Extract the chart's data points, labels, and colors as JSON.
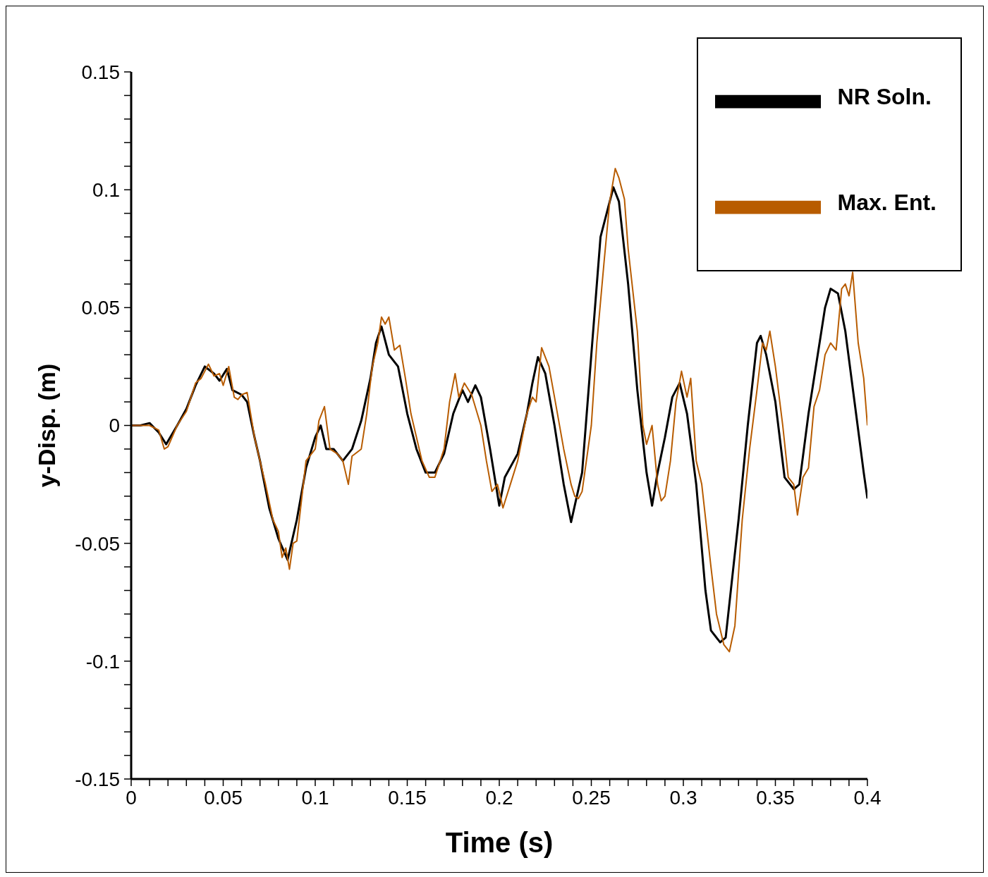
{
  "chart_data": {
    "type": "line",
    "xlabel": "Time (s)",
    "ylabel": "y-Disp. (m)",
    "legend": "top right",
    "xlim": [
      0,
      0.4
    ],
    "ylim": [
      -0.15,
      0.15
    ],
    "xticks": [
      0,
      {
        "value": 0.01,
        "label": null
      },
      {
        "value": 0.02,
        "label": null
      },
      {
        "value": 0.03,
        "label": null
      },
      {
        "value": 0.04,
        "label": null
      },
      0.05,
      {
        "value": 0.06,
        "label": null
      },
      {
        "value": 0.07,
        "label": null
      },
      {
        "value": 0.08,
        "label": null
      },
      {
        "value": 0.09,
        "label": null
      },
      0.1,
      {
        "value": 0.11,
        "label": null
      },
      {
        "value": 0.12,
        "label": null
      },
      {
        "value": 0.13,
        "label": null
      },
      {
        "value": 0.14,
        "label": null
      },
      0.15,
      {
        "value": 0.16,
        "label": null
      },
      {
        "value": 0.17,
        "label": null
      },
      {
        "value": 0.18,
        "label": null
      },
      {
        "value": 0.19,
        "label": null
      },
      0.2,
      {
        "value": 0.21,
        "label": null
      },
      {
        "value": 0.22,
        "label": null
      },
      {
        "value": 0.23,
        "label": null
      },
      {
        "value": 0.24,
        "label": null
      },
      0.25,
      {
        "value": 0.26,
        "label": null
      },
      {
        "value": 0.27,
        "label": null
      },
      {
        "value": 0.28,
        "label": null
      },
      {
        "value": 0.29,
        "label": null
      },
      0.3,
      {
        "value": 0.31,
        "label": null
      },
      {
        "value": 0.32,
        "label": null
      },
      {
        "value": 0.33,
        "label": null
      },
      {
        "value": 0.34,
        "label": null
      },
      0.35,
      {
        "value": 0.36,
        "label": null
      },
      {
        "value": 0.37,
        "label": null
      },
      {
        "value": 0.38,
        "label": null
      },
      {
        "value": 0.39,
        "label": null
      },
      0.4
    ],
    "yticks": [
      -0.15,
      {
        "value": -0.14,
        "label": null
      },
      {
        "value": -0.13,
        "label": null
      },
      {
        "value": -0.12,
        "label": null
      },
      {
        "value": -0.11,
        "label": null
      },
      -0.1,
      {
        "value": -0.09,
        "label": null
      },
      {
        "value": -0.08,
        "label": null
      },
      {
        "value": -0.07,
        "label": null
      },
      {
        "value": -0.06,
        "label": null
      },
      -0.05,
      {
        "value": -0.04,
        "label": null
      },
      {
        "value": -0.03,
        "label": null
      },
      {
        "value": -0.02,
        "label": null
      },
      {
        "value": -0.01,
        "label": null
      },
      0,
      {
        "value": 0.01,
        "label": null
      },
      {
        "value": 0.02,
        "label": null
      },
      {
        "value": 0.03,
        "label": null
      },
      {
        "value": 0.04,
        "label": null
      },
      0.05,
      {
        "value": 0.06,
        "label": null
      },
      {
        "value": 0.07,
        "label": null
      },
      {
        "value": 0.08,
        "label": null
      },
      {
        "value": 0.09,
        "label": null
      },
      0.1,
      {
        "value": 0.11,
        "label": null
      },
      {
        "value": 0.12,
        "label": null
      },
      {
        "value": 0.13,
        "label": null
      },
      {
        "value": 0.14,
        "label": null
      },
      0.15
    ],
    "series": [
      {
        "name": "NR Soln.",
        "color": "#000000",
        "x": [
          0,
          0.005,
          0.01,
          0.015,
          0.019,
          0.025,
          0.03,
          0.035,
          0.04,
          0.045,
          0.048,
          0.052,
          0.055,
          0.06,
          0.063,
          0.067,
          0.07,
          0.075,
          0.08,
          0.085,
          0.09,
          0.095,
          0.1,
          0.103,
          0.106,
          0.11,
          0.115,
          0.12,
          0.125,
          0.13,
          0.133,
          0.136,
          0.14,
          0.145,
          0.15,
          0.155,
          0.16,
          0.165,
          0.17,
          0.175,
          0.18,
          0.183,
          0.187,
          0.19,
          0.195,
          0.2,
          0.203,
          0.21,
          0.215,
          0.218,
          0.221,
          0.225,
          0.23,
          0.235,
          0.239,
          0.245,
          0.25,
          0.255,
          0.259,
          0.262,
          0.265,
          0.27,
          0.275,
          0.28,
          0.283,
          0.286,
          0.29,
          0.294,
          0.298,
          0.302,
          0.307,
          0.312,
          0.315,
          0.32,
          0.323,
          0.33,
          0.335,
          0.34,
          0.342,
          0.345,
          0.35,
          0.355,
          0.36,
          0.363,
          0.368,
          0.373,
          0.377,
          0.38,
          0.384,
          0.388,
          0.393,
          0.398,
          0.4
        ],
        "values": [
          0,
          0,
          0.001,
          -0.003,
          -0.008,
          0,
          0.007,
          0.017,
          0.025,
          0.022,
          0.019,
          0.024,
          0.015,
          0.013,
          0.01,
          -0.005,
          -0.015,
          -0.035,
          -0.048,
          -0.057,
          -0.04,
          -0.018,
          -0.005,
          0,
          -0.01,
          -0.01,
          -0.015,
          -0.01,
          0.002,
          0.02,
          0.035,
          0.042,
          0.03,
          0.025,
          0.005,
          -0.01,
          -0.02,
          -0.02,
          -0.012,
          0.005,
          0.015,
          0.01,
          0.017,
          0.012,
          -0.01,
          -0.034,
          -0.022,
          -0.012,
          0.005,
          0.018,
          0.029,
          0.022,
          0,
          -0.025,
          -0.041,
          -0.02,
          0.03,
          0.08,
          0.092,
          0.101,
          0.095,
          0.06,
          0.015,
          -0.02,
          -0.034,
          -0.02,
          -0.005,
          0.012,
          0.018,
          0.005,
          -0.025,
          -0.07,
          -0.087,
          -0.092,
          -0.09,
          -0.04,
          0,
          0.035,
          0.038,
          0.03,
          0.01,
          -0.022,
          -0.027,
          -0.025,
          0.005,
          0.03,
          0.05,
          0.058,
          0.056,
          0.04,
          0.01,
          -0.02,
          -0.031
        ]
      },
      {
        "name": "Max. Ent.",
        "color": "#b85c00",
        "x": [
          0,
          0.01,
          0.015,
          0.018,
          0.02,
          0.025,
          0.03,
          0.035,
          0.038,
          0.04,
          0.042,
          0.045,
          0.048,
          0.05,
          0.053,
          0.056,
          0.058,
          0.06,
          0.063,
          0.067,
          0.07,
          0.073,
          0.077,
          0.08,
          0.082,
          0.084,
          0.086,
          0.088,
          0.09,
          0.095,
          0.1,
          0.102,
          0.105,
          0.108,
          0.112,
          0.115,
          0.118,
          0.12,
          0.125,
          0.128,
          0.131,
          0.134,
          0.136,
          0.138,
          0.14,
          0.143,
          0.146,
          0.149,
          0.152,
          0.158,
          0.162,
          0.165,
          0.17,
          0.173,
          0.176,
          0.178,
          0.181,
          0.185,
          0.19,
          0.193,
          0.196,
          0.199,
          0.202,
          0.206,
          0.21,
          0.215,
          0.218,
          0.22,
          0.223,
          0.227,
          0.23,
          0.235,
          0.239,
          0.241,
          0.243,
          0.245,
          0.25,
          0.253,
          0.257,
          0.26,
          0.263,
          0.265,
          0.268,
          0.27,
          0.275,
          0.278,
          0.28,
          0.283,
          0.286,
          0.288,
          0.29,
          0.293,
          0.296,
          0.299,
          0.302,
          0.304,
          0.307,
          0.31,
          0.315,
          0.318,
          0.322,
          0.325,
          0.328,
          0.332,
          0.336,
          0.34,
          0.343,
          0.345,
          0.347,
          0.35,
          0.354,
          0.357,
          0.36,
          0.362,
          0.365,
          0.368,
          0.371,
          0.374,
          0.377,
          0.38,
          0.383,
          0.386,
          0.388,
          0.39,
          0.392,
          0.395,
          0.398,
          0.4
        ],
        "values": [
          0,
          0,
          -0.002,
          -0.01,
          -0.009,
          0,
          0.006,
          0.018,
          0.02,
          0.023,
          0.026,
          0.021,
          0.022,
          0.017,
          0.025,
          0.012,
          0.011,
          0.013,
          0.014,
          -0.005,
          -0.015,
          -0.025,
          -0.04,
          -0.045,
          -0.056,
          -0.052,
          -0.061,
          -0.05,
          -0.049,
          -0.015,
          -0.01,
          0.002,
          0.008,
          -0.01,
          -0.012,
          -0.015,
          -0.025,
          -0.013,
          -0.01,
          0.005,
          0.025,
          0.035,
          0.046,
          0.043,
          0.046,
          0.032,
          0.034,
          0.02,
          0.005,
          -0.015,
          -0.022,
          -0.022,
          -0.01,
          0.01,
          0.022,
          0.012,
          0.018,
          0.013,
          0,
          -0.015,
          -0.028,
          -0.025,
          -0.035,
          -0.025,
          -0.015,
          0.005,
          0.012,
          0.01,
          0.033,
          0.025,
          0.012,
          -0.01,
          -0.025,
          -0.03,
          -0.031,
          -0.028,
          0,
          0.035,
          0.07,
          0.095,
          0.109,
          0.105,
          0.096,
          0.075,
          0.04,
          0,
          -0.008,
          0,
          -0.025,
          -0.032,
          -0.03,
          -0.015,
          0.01,
          0.023,
          0.012,
          0.02,
          -0.015,
          -0.025,
          -0.06,
          -0.08,
          -0.093,
          -0.096,
          -0.085,
          -0.04,
          -0.01,
          0.015,
          0.035,
          0.032,
          0.04,
          0.025,
          0,
          -0.022,
          -0.025,
          -0.038,
          -0.022,
          -0.018,
          0.008,
          0.015,
          0.03,
          0.035,
          0.032,
          0.058,
          0.06,
          0.055,
          0.065,
          0.035,
          0.02,
          0
        ]
      }
    ]
  }
}
